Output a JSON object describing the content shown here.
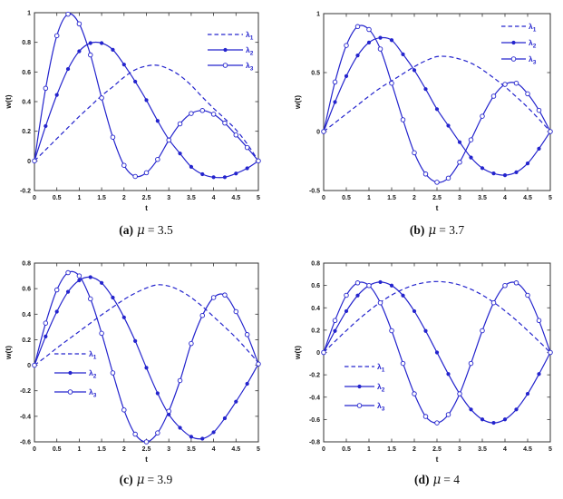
{
  "figure": {
    "curve_color": "#2424cd",
    "axis_color": "#333333",
    "tick_text_color": "#1a1a1a",
    "caption_text_color": "#111111",
    "x_label": "t",
    "y_label": "w(t)",
    "x_tick_labels": [
      "0",
      "0.5",
      "1",
      "1.5",
      "2",
      "2.5",
      "3",
      "3.5",
      "4",
      "4.5",
      "5"
    ],
    "t_values": [
      0,
      0.25,
      0.5,
      0.75,
      1,
      1.25,
      1.5,
      1.75,
      2,
      2.25,
      2.5,
      2.75,
      3,
      3.25,
      3.5,
      3.75,
      4,
      4.25,
      4.5,
      4.75,
      5
    ],
    "legend_labels": [
      {
        "base": "λ",
        "sub": "1"
      },
      {
        "base": "λ",
        "sub": "2"
      },
      {
        "base": "λ",
        "sub": "3"
      }
    ]
  },
  "chart_data": [
    {
      "id": "a",
      "type": "line",
      "title": "(a) μ = 3.5",
      "caption": {
        "letter": "(a)",
        "mu": "μ",
        "eq": "= 3.5"
      },
      "mu": 3.5,
      "xlabel": "t",
      "ylabel": "w(t)",
      "xlim": [
        0,
        5
      ],
      "ylim": [
        -0.2,
        1
      ],
      "x_tick_labels": [
        "0",
        "0.5",
        "1",
        "1.5",
        "2",
        "2.5",
        "3",
        "3.5",
        "4",
        "4.5",
        "5"
      ],
      "y_tick_labels": [
        "-0.2",
        "0",
        "0.2",
        "0.4",
        "0.6",
        "0.8",
        "1"
      ],
      "y_ticks": [
        -0.2,
        0,
        0.2,
        0.4,
        0.6,
        0.8,
        1
      ],
      "legend_position": "northeast",
      "series": [
        {
          "name": "λ1",
          "label_base": "λ",
          "label_sub": "1",
          "line": "dashed",
          "marker": "none",
          "values": [
            0,
            0.075,
            0.15,
            0.225,
            0.3,
            0.37,
            0.44,
            0.5,
            0.565,
            0.615,
            0.64,
            0.645,
            0.62,
            0.575,
            0.51,
            0.43,
            0.355,
            0.285,
            0.21,
            0.115,
            0
          ]
        },
        {
          "name": "λ2",
          "label_base": "λ",
          "label_sub": "2",
          "line": "solid",
          "marker": "filled-circle",
          "values": [
            0,
            0.235,
            0.445,
            0.62,
            0.74,
            0.795,
            0.795,
            0.75,
            0.65,
            0.535,
            0.41,
            0.27,
            0.145,
            0.05,
            -0.04,
            -0.09,
            -0.11,
            -0.11,
            -0.085,
            -0.05,
            0
          ]
        },
        {
          "name": "λ3",
          "label_base": "λ",
          "label_sub": "3",
          "line": "solid",
          "marker": "open-circle",
          "values": [
            0,
            0.49,
            0.845,
            0.99,
            0.925,
            0.715,
            0.425,
            0.16,
            -0.03,
            -0.105,
            -0.08,
            0.01,
            0.14,
            0.25,
            0.32,
            0.34,
            0.315,
            0.255,
            0.175,
            0.09,
            0
          ]
        }
      ]
    },
    {
      "id": "b",
      "type": "line",
      "title": "(b) μ = 3.7",
      "caption": {
        "letter": "(b)",
        "mu": "μ",
        "eq": "= 3.7"
      },
      "mu": 3.7,
      "xlabel": "t",
      "ylabel": "w(t)",
      "xlim": [
        0,
        5
      ],
      "ylim": [
        -0.5,
        1
      ],
      "x_tick_labels": [
        "0",
        "0.5",
        "1",
        "1.5",
        "2",
        "2.5",
        "3",
        "3.5",
        "4",
        "4.5",
        "5"
      ],
      "y_tick_labels": [
        "-0.5",
        "0",
        "0.5",
        "1"
      ],
      "y_ticks": [
        -0.5,
        0,
        0.5,
        1
      ],
      "legend_position": "northeast",
      "series": [
        {
          "name": "λ1",
          "label_base": "λ",
          "label_sub": "1",
          "line": "dashed",
          "marker": "none",
          "values": [
            0,
            0.075,
            0.15,
            0.225,
            0.3,
            0.37,
            0.43,
            0.49,
            0.55,
            0.6,
            0.635,
            0.635,
            0.615,
            0.58,
            0.525,
            0.455,
            0.38,
            0.295,
            0.205,
            0.105,
            0
          ]
        },
        {
          "name": "λ2",
          "label_base": "λ",
          "label_sub": "2",
          "line": "solid",
          "marker": "filled-circle",
          "values": [
            0,
            0.25,
            0.47,
            0.645,
            0.755,
            0.795,
            0.775,
            0.655,
            0.52,
            0.36,
            0.19,
            0.05,
            -0.09,
            -0.22,
            -0.31,
            -0.355,
            -0.37,
            -0.345,
            -0.27,
            -0.145,
            0
          ]
        },
        {
          "name": "λ3",
          "label_base": "λ",
          "label_sub": "3",
          "line": "solid",
          "marker": "open-circle",
          "values": [
            0,
            0.42,
            0.73,
            0.89,
            0.865,
            0.7,
            0.41,
            0.1,
            -0.18,
            -0.36,
            -0.43,
            -0.395,
            -0.26,
            -0.07,
            0.13,
            0.3,
            0.4,
            0.41,
            0.32,
            0.18,
            0
          ]
        }
      ]
    },
    {
      "id": "c",
      "type": "line",
      "title": "(c) μ = 3.9",
      "caption": {
        "letter": "(c)",
        "mu": "μ",
        "eq": "= 3.9"
      },
      "mu": 3.9,
      "xlabel": "t",
      "ylabel": "w(t)",
      "xlim": [
        0,
        5
      ],
      "ylim": [
        -0.6,
        0.8
      ],
      "x_tick_labels": [
        "0",
        "0.5",
        "1",
        "1.5",
        "2",
        "2.5",
        "3",
        "3.5",
        "4",
        "4.5",
        "5"
      ],
      "y_tick_labels": [
        "-0.6",
        "-0.4",
        "-0.2",
        "0",
        "0.2",
        "0.4",
        "0.6",
        "0.8"
      ],
      "y_ticks": [
        -0.6,
        -0.4,
        -0.2,
        0,
        0.2,
        0.4,
        0.6,
        0.8
      ],
      "legend_position": "west",
      "series": [
        {
          "name": "λ1",
          "label_base": "λ",
          "label_sub": "1",
          "line": "dashed",
          "marker": "none",
          "values": [
            0,
            0.065,
            0.135,
            0.2,
            0.265,
            0.33,
            0.395,
            0.455,
            0.515,
            0.565,
            0.605,
            0.63,
            0.62,
            0.585,
            0.53,
            0.46,
            0.38,
            0.3,
            0.215,
            0.12,
            0.02
          ]
        },
        {
          "name": "λ2",
          "label_base": "λ",
          "label_sub": "2",
          "line": "solid",
          "marker": "filled-circle",
          "values": [
            0,
            0.225,
            0.42,
            0.575,
            0.665,
            0.69,
            0.645,
            0.53,
            0.375,
            0.19,
            -0.02,
            -0.22,
            -0.385,
            -0.49,
            -0.56,
            -0.575,
            -0.525,
            -0.415,
            -0.285,
            -0.145,
            0.01
          ]
        },
        {
          "name": "λ3",
          "label_base": "λ",
          "label_sub": "3",
          "line": "solid",
          "marker": "open-circle",
          "values": [
            0,
            0.33,
            0.59,
            0.725,
            0.7,
            0.52,
            0.25,
            -0.06,
            -0.35,
            -0.54,
            -0.6,
            -0.53,
            -0.36,
            -0.12,
            0.17,
            0.39,
            0.53,
            0.55,
            0.42,
            0.24,
            0.01
          ]
        }
      ]
    },
    {
      "id": "d",
      "type": "line",
      "title": "(d) μ = 4",
      "caption": {
        "letter": "(d)",
        "mu": "μ",
        "eq": "= 4"
      },
      "mu": 4,
      "xlabel": "t",
      "ylabel": "w(t)",
      "xlim": [
        0,
        5
      ],
      "ylim": [
        -0.8,
        0.8
      ],
      "x_tick_labels": [
        "0",
        "0.5",
        "1",
        "1.5",
        "2",
        "2.5",
        "3",
        "3.5",
        "4",
        "4.5",
        "5"
      ],
      "y_tick_labels": [
        "-0.8",
        "-0.6",
        "-0.4",
        "-0.2",
        "0",
        "0.2",
        "0.4",
        "0.6",
        "0.8"
      ],
      "y_ticks": [
        -0.8,
        -0.6,
        -0.4,
        -0.2,
        0,
        0.2,
        0.4,
        0.6,
        0.8
      ],
      "legend_position": "west",
      "series": [
        {
          "name": "λ1",
          "label_base": "λ",
          "label_sub": "1",
          "line": "dashed",
          "marker": "none",
          "values": [
            0,
            0.099,
            0.196,
            0.288,
            0.373,
            0.449,
            0.514,
            0.566,
            0.604,
            0.627,
            0.635,
            0.627,
            0.604,
            0.566,
            0.514,
            0.449,
            0.373,
            0.288,
            0.196,
            0.099,
            0
          ]
        },
        {
          "name": "λ2",
          "label_base": "λ",
          "label_sub": "2",
          "line": "solid",
          "marker": "filled-circle",
          "values": [
            0,
            0.193,
            0.37,
            0.51,
            0.599,
            0.63,
            0.599,
            0.51,
            0.37,
            0.193,
            0,
            -0.193,
            -0.37,
            -0.51,
            -0.599,
            -0.63,
            -0.599,
            -0.51,
            -0.37,
            -0.193,
            0
          ]
        },
        {
          "name": "λ3",
          "label_base": "λ",
          "label_sub": "3",
          "line": "solid",
          "marker": "open-circle",
          "values": [
            0,
            0.286,
            0.512,
            0.623,
            0.599,
            0.445,
            0.195,
            -0.098,
            -0.37,
            -0.573,
            -0.63,
            -0.556,
            -0.37,
            -0.098,
            0.195,
            0.445,
            0.599,
            0.623,
            0.512,
            0.286,
            0
          ]
        }
      ]
    }
  ]
}
